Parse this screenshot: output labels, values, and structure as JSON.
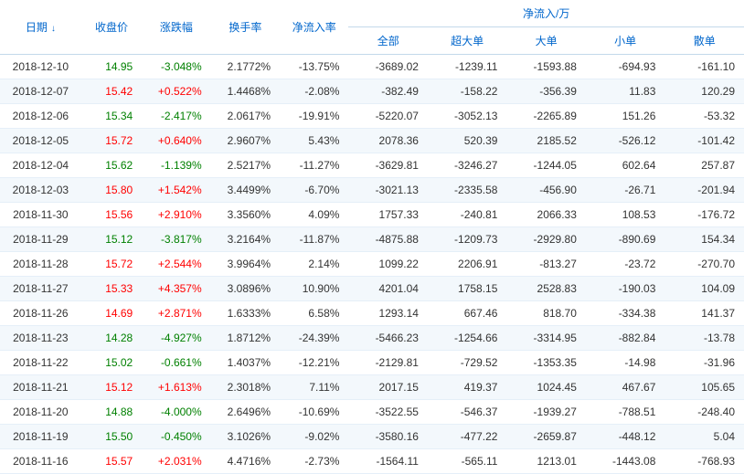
{
  "headers": {
    "date": "日期",
    "close": "收盘价",
    "change": "涨跌幅",
    "turnover": "换手率",
    "inflow_rate": "净流入率",
    "inflow_group": "净流入/万",
    "all": "全部",
    "xlarge": "超大单",
    "large": "大单",
    "small": "小单",
    "retail": "散单"
  },
  "colors": {
    "header_text": "#0066cc",
    "row_even_bg": "#f3f8fc",
    "row_odd_bg": "#ffffff",
    "border": "#e5eff8",
    "up": "#ff0000",
    "down": "#008000"
  },
  "rows": [
    {
      "date": "2018-12-10",
      "close": "14.95",
      "chg": "-3.048%",
      "turn": "2.1772%",
      "inr": "-13.75%",
      "all": "-3689.02",
      "xl": "-1239.11",
      "l": "-1593.88",
      "s": "-694.93",
      "r": "-161.10",
      "up": false
    },
    {
      "date": "2018-12-07",
      "close": "15.42",
      "chg": "+0.522%",
      "turn": "1.4468%",
      "inr": "-2.08%",
      "all": "-382.49",
      "xl": "-158.22",
      "l": "-356.39",
      "s": "11.83",
      "r": "120.29",
      "up": true
    },
    {
      "date": "2018-12-06",
      "close": "15.34",
      "chg": "-2.417%",
      "turn": "2.0617%",
      "inr": "-19.91%",
      "all": "-5220.07",
      "xl": "-3052.13",
      "l": "-2265.89",
      "s": "151.26",
      "r": "-53.32",
      "up": false
    },
    {
      "date": "2018-12-05",
      "close": "15.72",
      "chg": "+0.640%",
      "turn": "2.9607%",
      "inr": "5.43%",
      "all": "2078.36",
      "xl": "520.39",
      "l": "2185.52",
      "s": "-526.12",
      "r": "-101.42",
      "up": true
    },
    {
      "date": "2018-12-04",
      "close": "15.62",
      "chg": "-1.139%",
      "turn": "2.5217%",
      "inr": "-11.27%",
      "all": "-3629.81",
      "xl": "-3246.27",
      "l": "-1244.05",
      "s": "602.64",
      "r": "257.87",
      "up": false
    },
    {
      "date": "2018-12-03",
      "close": "15.80",
      "chg": "+1.542%",
      "turn": "3.4499%",
      "inr": "-6.70%",
      "all": "-3021.13",
      "xl": "-2335.58",
      "l": "-456.90",
      "s": "-26.71",
      "r": "-201.94",
      "up": true
    },
    {
      "date": "2018-11-30",
      "close": "15.56",
      "chg": "+2.910%",
      "turn": "3.3560%",
      "inr": "4.09%",
      "all": "1757.33",
      "xl": "-240.81",
      "l": "2066.33",
      "s": "108.53",
      "r": "-176.72",
      "up": true
    },
    {
      "date": "2018-11-29",
      "close": "15.12",
      "chg": "-3.817%",
      "turn": "3.2164%",
      "inr": "-11.87%",
      "all": "-4875.88",
      "xl": "-1209.73",
      "l": "-2929.80",
      "s": "-890.69",
      "r": "154.34",
      "up": false
    },
    {
      "date": "2018-11-28",
      "close": "15.72",
      "chg": "+2.544%",
      "turn": "3.9964%",
      "inr": "2.14%",
      "all": "1099.22",
      "xl": "2206.91",
      "l": "-813.27",
      "s": "-23.72",
      "r": "-270.70",
      "up": true
    },
    {
      "date": "2018-11-27",
      "close": "15.33",
      "chg": "+4.357%",
      "turn": "3.0896%",
      "inr": "10.90%",
      "all": "4201.04",
      "xl": "1758.15",
      "l": "2528.83",
      "s": "-190.03",
      "r": "104.09",
      "up": true
    },
    {
      "date": "2018-11-26",
      "close": "14.69",
      "chg": "+2.871%",
      "turn": "1.6333%",
      "inr": "6.58%",
      "all": "1293.14",
      "xl": "667.46",
      "l": "818.70",
      "s": "-334.38",
      "r": "141.37",
      "up": true
    },
    {
      "date": "2018-11-23",
      "close": "14.28",
      "chg": "-4.927%",
      "turn": "1.8712%",
      "inr": "-24.39%",
      "all": "-5466.23",
      "xl": "-1254.66",
      "l": "-3314.95",
      "s": "-882.84",
      "r": "-13.78",
      "up": false
    },
    {
      "date": "2018-11-22",
      "close": "15.02",
      "chg": "-0.661%",
      "turn": "1.4037%",
      "inr": "-12.21%",
      "all": "-2129.81",
      "xl": "-729.52",
      "l": "-1353.35",
      "s": "-14.98",
      "r": "-31.96",
      "up": false
    },
    {
      "date": "2018-11-21",
      "close": "15.12",
      "chg": "+1.613%",
      "turn": "2.3018%",
      "inr": "7.11%",
      "all": "2017.15",
      "xl": "419.37",
      "l": "1024.45",
      "s": "467.67",
      "r": "105.65",
      "up": true
    },
    {
      "date": "2018-11-20",
      "close": "14.88",
      "chg": "-4.000%",
      "turn": "2.6496%",
      "inr": "-10.69%",
      "all": "-3522.55",
      "xl": "-546.37",
      "l": "-1939.27",
      "s": "-788.51",
      "r": "-248.40",
      "up": false
    },
    {
      "date": "2018-11-19",
      "close": "15.50",
      "chg": "-0.450%",
      "turn": "3.1026%",
      "inr": "-9.02%",
      "all": "-3580.16",
      "xl": "-477.22",
      "l": "-2659.87",
      "s": "-448.12",
      "r": "5.04",
      "up": false
    },
    {
      "date": "2018-11-16",
      "close": "15.57",
      "chg": "+2.031%",
      "turn": "4.4716%",
      "inr": "-2.73%",
      "all": "-1564.11",
      "xl": "-565.11",
      "l": "1213.01",
      "s": "-1443.08",
      "r": "-768.93",
      "up": true
    }
  ]
}
